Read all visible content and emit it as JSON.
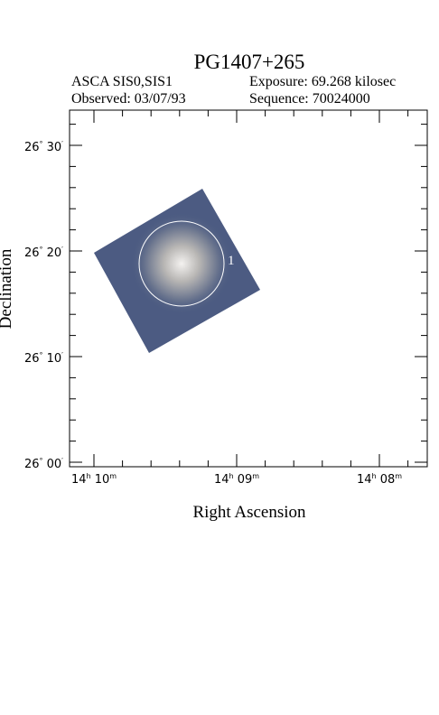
{
  "title": "PG1407+265",
  "header": {
    "instrument": "ASCA SIS0,SIS1",
    "exposure": "Exposure: 69.268 kilosec",
    "observed": "Observed: 03/07/93",
    "sequence": "Sequence: 70024000"
  },
  "axes": {
    "x_label": "Right Ascension",
    "y_label": "Declination",
    "dec_ticks": [
      {
        "parts": [
          "26",
          "°",
          " 30",
          "′"
        ]
      },
      {
        "parts": [
          "26",
          "°",
          " 20",
          "′"
        ]
      },
      {
        "parts": [
          "26",
          "°",
          " 10",
          "′"
        ]
      },
      {
        "parts": [
          "26",
          "°",
          " 00",
          "′"
        ]
      }
    ],
    "ra_ticks": [
      {
        "parts": [
          "14",
          "h",
          " 10",
          "m"
        ]
      },
      {
        "parts": [
          "14",
          "h",
          " 09",
          "m"
        ]
      },
      {
        "parts": [
          "14",
          "h",
          " 08",
          "m"
        ]
      }
    ]
  },
  "source_label": "1"
}
